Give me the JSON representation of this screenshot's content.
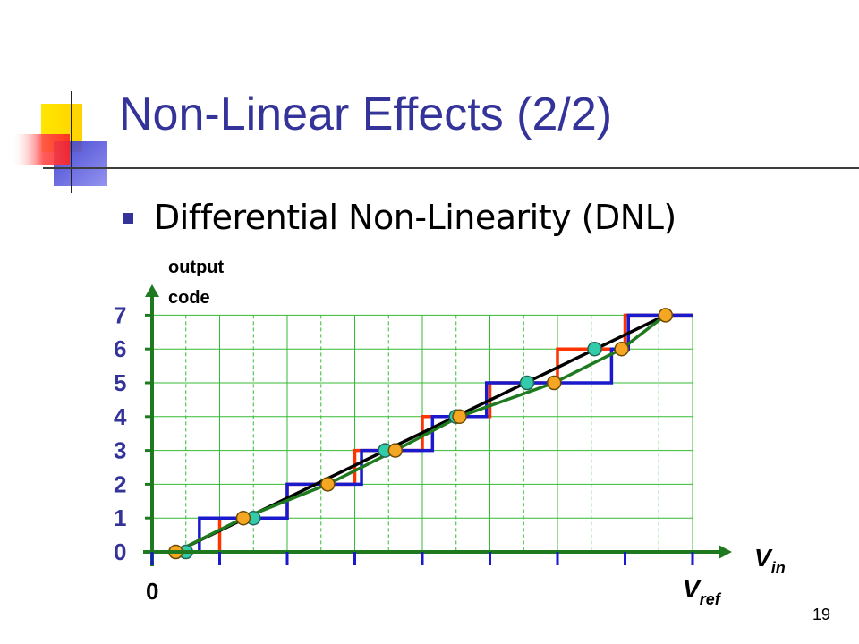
{
  "slide": {
    "title": "Non-Linear Effects (2/2)",
    "bullet": "Differential Non-Linearity (DNL)",
    "slide_number": "19"
  },
  "colors": {
    "title": "#333399",
    "axis": "#1f7a1f",
    "grid": "#33bb33",
    "ideal_staircase": "#ff3300",
    "actual_staircase": "#1a1acc",
    "ideal_line": "#000000",
    "actual_curve": "#1f7a1f",
    "ideal_marker": "#f5a623",
    "actual_marker": "#33ccaa",
    "tick_label": "#333399"
  },
  "diagram": {
    "y_axis_label_line1": "output",
    "y_axis_label_line2": "code",
    "x_axis_label_main": "V",
    "x_axis_label_sub": "in",
    "x_origin_label": "0",
    "x_end_label_main": "V",
    "x_end_label_sub": "ref",
    "y_ticks": [
      "0",
      "1",
      "2",
      "3",
      "4",
      "5",
      "6",
      "7"
    ],
    "x_divisions": 16,
    "ideal_staircase_steps": [
      [
        0,
        0
      ],
      [
        2,
        0
      ],
      [
        2,
        1
      ],
      [
        4,
        1
      ],
      [
        4,
        2
      ],
      [
        6,
        2
      ],
      [
        6,
        3
      ],
      [
        8,
        3
      ],
      [
        8,
        4
      ],
      [
        10,
        4
      ],
      [
        10,
        5
      ],
      [
        12,
        5
      ],
      [
        12,
        6
      ],
      [
        14,
        6
      ],
      [
        14,
        7
      ],
      [
        16,
        7
      ]
    ],
    "actual_staircase_steps": [
      [
        0,
        0
      ],
      [
        1.4,
        0
      ],
      [
        1.4,
        1
      ],
      [
        4,
        1
      ],
      [
        4,
        2
      ],
      [
        6.2,
        2
      ],
      [
        6.2,
        3
      ],
      [
        8.3,
        3
      ],
      [
        8.3,
        4
      ],
      [
        9.9,
        4
      ],
      [
        9.9,
        5
      ],
      [
        13.6,
        5
      ],
      [
        13.6,
        6
      ],
      [
        14.1,
        6
      ],
      [
        14.1,
        7
      ],
      [
        16,
        7
      ]
    ],
    "ideal_line": [
      [
        0.7,
        0
      ],
      [
        15.2,
        7
      ]
    ],
    "actual_curve": [
      [
        0.7,
        0
      ],
      [
        2.7,
        1
      ],
      [
        5.2,
        2
      ],
      [
        7.2,
        3
      ],
      [
        9.1,
        4
      ],
      [
        11.9,
        5
      ],
      [
        13.9,
        6
      ],
      [
        15.2,
        7
      ]
    ],
    "ideal_markers": [
      [
        0.7,
        0
      ],
      [
        2.7,
        1
      ],
      [
        5.2,
        2
      ],
      [
        7.2,
        3
      ],
      [
        9.1,
        4
      ],
      [
        11.9,
        5
      ],
      [
        13.9,
        6
      ],
      [
        15.2,
        7
      ]
    ],
    "actual_markers": [
      [
        1.0,
        0
      ],
      [
        3.0,
        1
      ],
      [
        6.9,
        3
      ],
      [
        9.0,
        4
      ],
      [
        11.1,
        5
      ],
      [
        13.1,
        6
      ]
    ]
  }
}
